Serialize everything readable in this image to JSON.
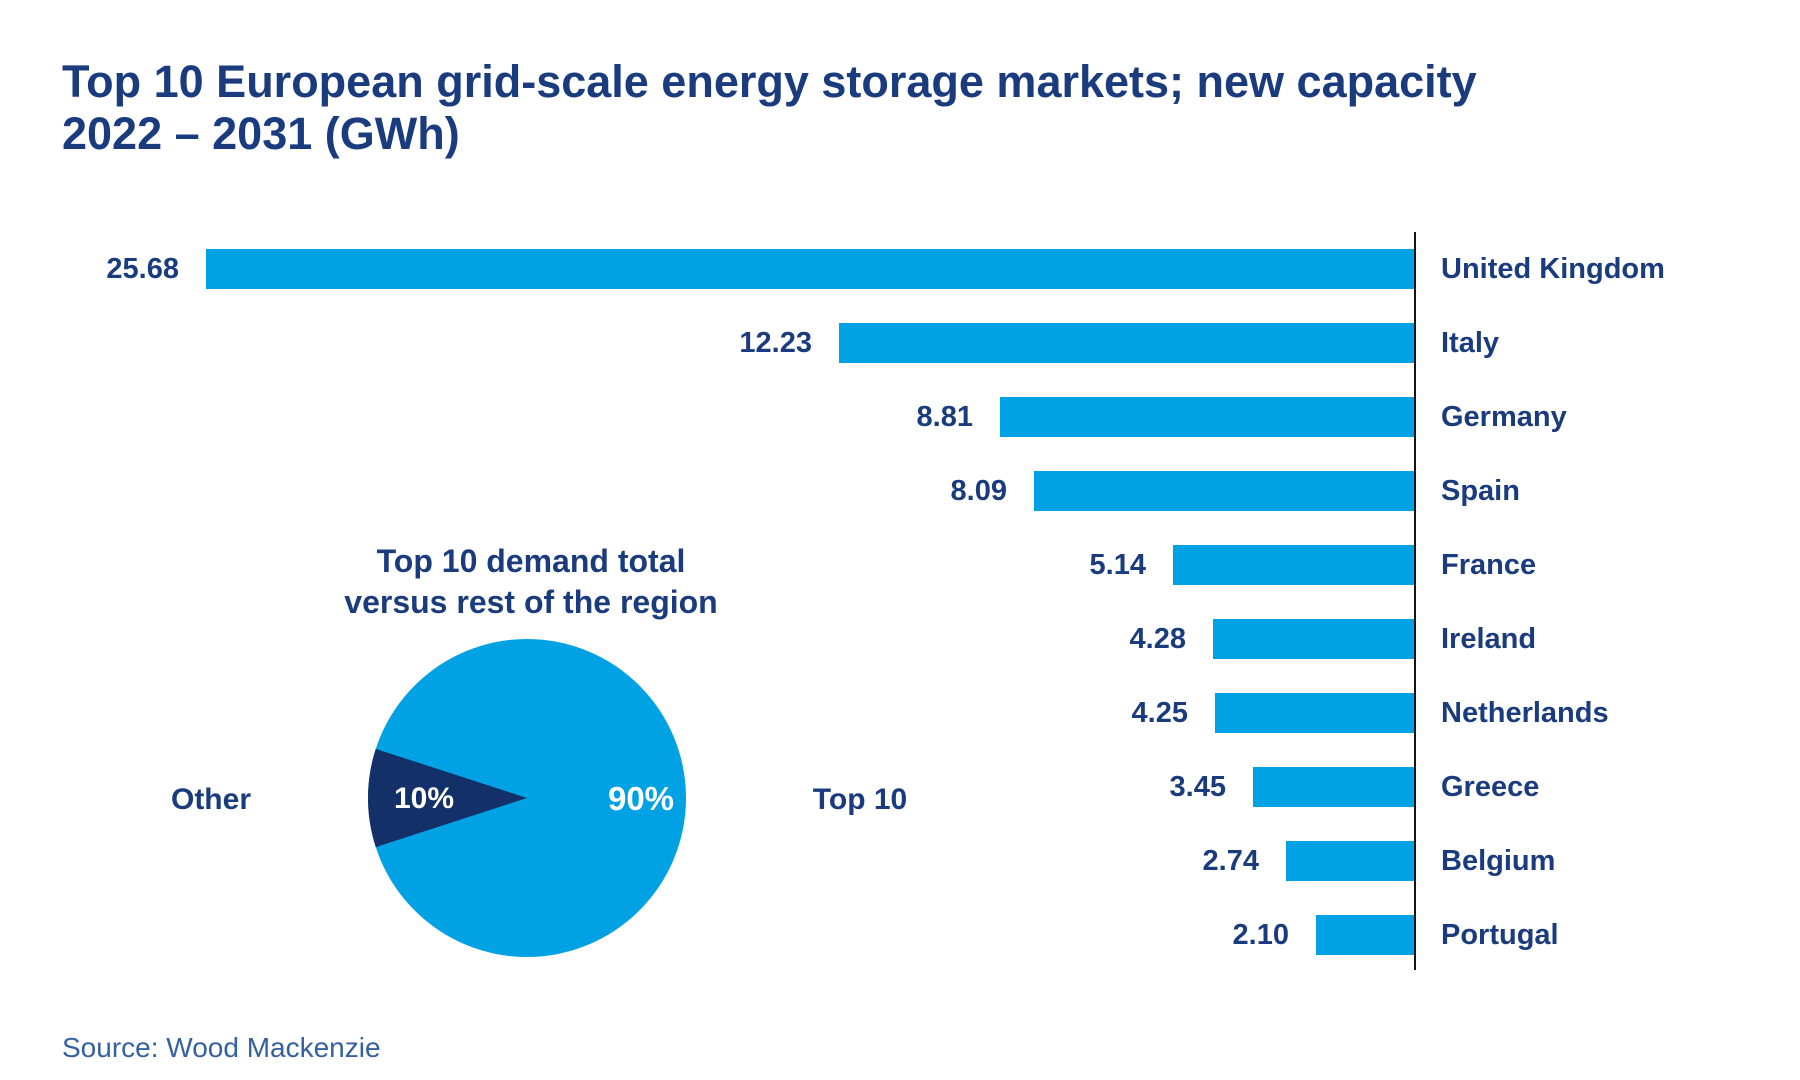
{
  "title": {
    "line1": "Top 10 European grid-scale energy storage markets; new capacity",
    "line2": "2022 – 2031 (GWh)"
  },
  "source": "Source: Wood Mackenzie",
  "colors": {
    "bar_blue": "#01a2e3",
    "dark_navy": "#143069",
    "label_navy": "#1a3b7d",
    "axis_black": "#141414",
    "source_blue": "#35619f",
    "pct_text": "#ffffff"
  },
  "chart_data": [
    {
      "type": "bar",
      "orientation": "horizontal-right-aligned",
      "title": "Top 10 European grid-scale energy storage markets; new capacity 2022 – 2031 (GWh)",
      "unit": "GWh",
      "categories": [
        "United Kingdom",
        "Italy",
        "Germany",
        "Spain",
        "France",
        "Ireland",
        "Netherlands",
        "Greece",
        "Belgium",
        "Portugal"
      ],
      "values": [
        25.68,
        12.23,
        8.81,
        8.09,
        5.14,
        4.28,
        4.25,
        3.45,
        2.74,
        2.1
      ],
      "value_labels": [
        "25.68",
        "12.23",
        "8.81",
        "8.09",
        "5.14",
        "4.28",
        "4.25",
        "3.45",
        "2.74",
        "2.10"
      ],
      "xlim": [
        0,
        26.5
      ],
      "grid": false,
      "legend": false
    },
    {
      "type": "pie",
      "title": "Top 10 demand total versus rest of the region",
      "title_lines": [
        "Top 10 demand total",
        "versus rest of the region"
      ],
      "slices": [
        {
          "label": "Top 10",
          "value": 90,
          "display": "90%",
          "color": "#01a2e3"
        },
        {
          "label": "Other",
          "value": 10,
          "display": "10%",
          "color": "#143069"
        }
      ],
      "legend_position": "left-and-right-sides"
    }
  ]
}
